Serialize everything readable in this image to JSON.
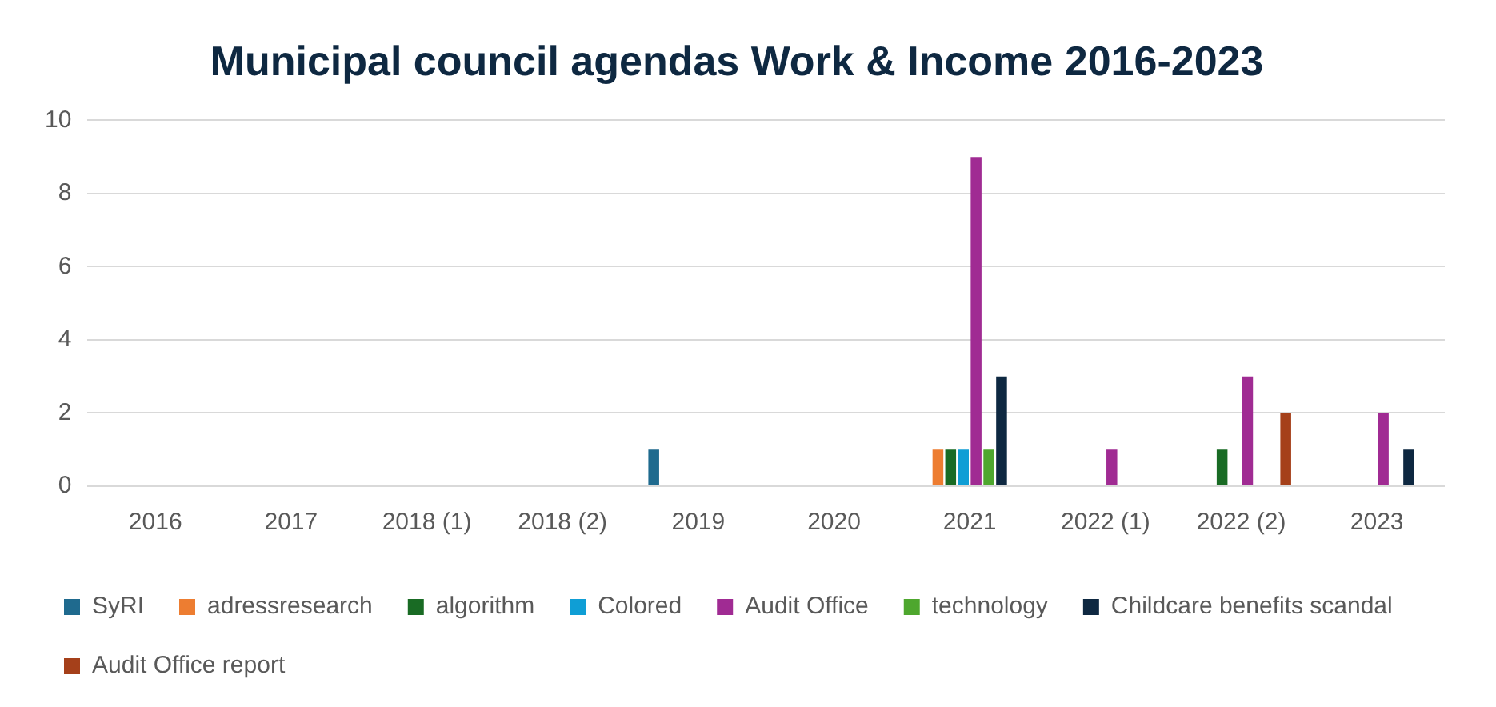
{
  "chart_data": {
    "type": "bar",
    "title": "Municipal council agendas Work & Income 2016-2023",
    "categories": [
      "2016",
      "2017",
      "2018 (1)",
      "2018 (2)",
      "2019",
      "2020",
      "2021",
      "2022 (1)",
      "2022 (2)",
      "2023"
    ],
    "series": [
      {
        "name": "SyRI",
        "color": "#1f6a8e",
        "values": [
          0,
          0,
          0,
          0,
          1,
          0,
          0,
          0,
          0,
          0
        ]
      },
      {
        "name": "adressresearch",
        "color": "#ed7d31",
        "values": [
          0,
          0,
          0,
          0,
          0,
          0,
          1,
          0,
          0,
          0
        ]
      },
      {
        "name": "algorithm",
        "color": "#196b24",
        "values": [
          0,
          0,
          0,
          0,
          0,
          0,
          1,
          0,
          1,
          0
        ]
      },
      {
        "name": "Colored",
        "color": "#0f9ed5",
        "values": [
          0,
          0,
          0,
          0,
          0,
          0,
          1,
          0,
          0,
          0
        ]
      },
      {
        "name": "Audit Office",
        "color": "#a02b93",
        "values": [
          0,
          0,
          0,
          0,
          0,
          0,
          9,
          1,
          3,
          2
        ]
      },
      {
        "name": "technology",
        "color": "#4ea72e",
        "values": [
          0,
          0,
          0,
          0,
          0,
          0,
          1,
          0,
          0,
          0
        ]
      },
      {
        "name": "Childcare benefits scandal",
        "color": "#0e2841",
        "values": [
          0,
          0,
          0,
          0,
          0,
          0,
          3,
          0,
          0,
          1
        ]
      },
      {
        "name": "Audit Office report",
        "color": "#a5401a",
        "values": [
          0,
          0,
          0,
          0,
          0,
          0,
          0,
          0,
          2,
          0
        ]
      }
    ],
    "ylim": [
      0,
      10
    ],
    "yticks": [
      0,
      2,
      4,
      6,
      8,
      10
    ],
    "grid": "y",
    "legend": "bottom"
  }
}
